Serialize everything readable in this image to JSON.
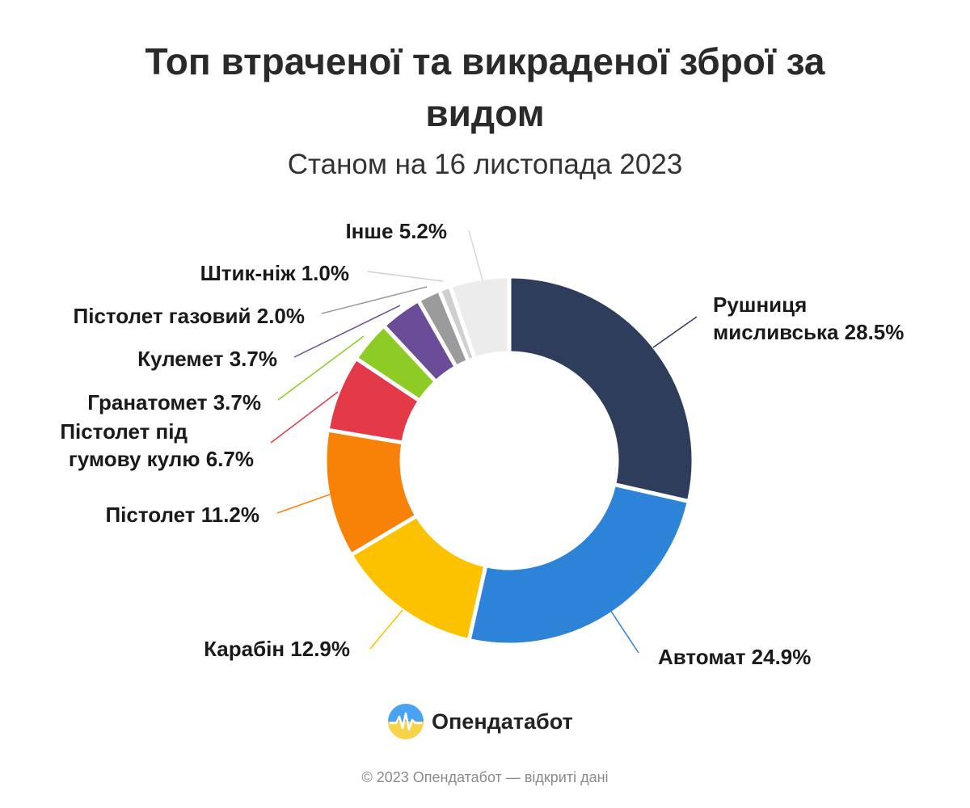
{
  "header": {
    "title": "Топ втраченої та викраденої зброї за видом",
    "subtitle": "Станом на 16 листопада 2023"
  },
  "chart_data": {
    "type": "pie",
    "donut": true,
    "title": "Топ втраченої та викраденої зброї за видом",
    "subtitle": "Станом на 16 листопада 2023",
    "slices": [
      {
        "label": "Рушниця мисливська",
        "value": 28.5,
        "display": "Рушниця\nмисливська 28.5%",
        "color": "#2e3d5c"
      },
      {
        "label": "Автомат",
        "value": 24.9,
        "display": "Автомат 24.9%",
        "color": "#2d83d8"
      },
      {
        "label": "Карабін",
        "value": 12.9,
        "display": "Карабін 12.9%",
        "color": "#fcc200"
      },
      {
        "label": "Пістолет",
        "value": 11.2,
        "display": "Пістолет 11.2%",
        "color": "#f88108"
      },
      {
        "label": "Пістолет під гумову кулю",
        "value": 6.7,
        "display": "Пістолет під\nгумову кулю 6.7%",
        "color": "#e33948"
      },
      {
        "label": "Гранатомет",
        "value": 3.7,
        "display": "Гранатомет 3.7%",
        "color": "#8dcb25"
      },
      {
        "label": "Кулемет",
        "value": 3.7,
        "display": "Кулемет 3.7%",
        "color": "#6a4c98"
      },
      {
        "label": "Пістолет газовий",
        "value": 2.0,
        "display": "Пістолет газовий 2.0%",
        "color": "#9b9b9b"
      },
      {
        "label": "Штик-ніж",
        "value": 1.0,
        "display": "Штик-ніж 1.0%",
        "color": "#cfcfcf"
      },
      {
        "label": "Інше",
        "value": 5.2,
        "display": "Інше 5.2%",
        "color": "#ececec"
      }
    ]
  },
  "footer": {
    "logo_text": "Опендатабот",
    "copyright": "© 2023 Опендатабот — відкриті дані"
  }
}
